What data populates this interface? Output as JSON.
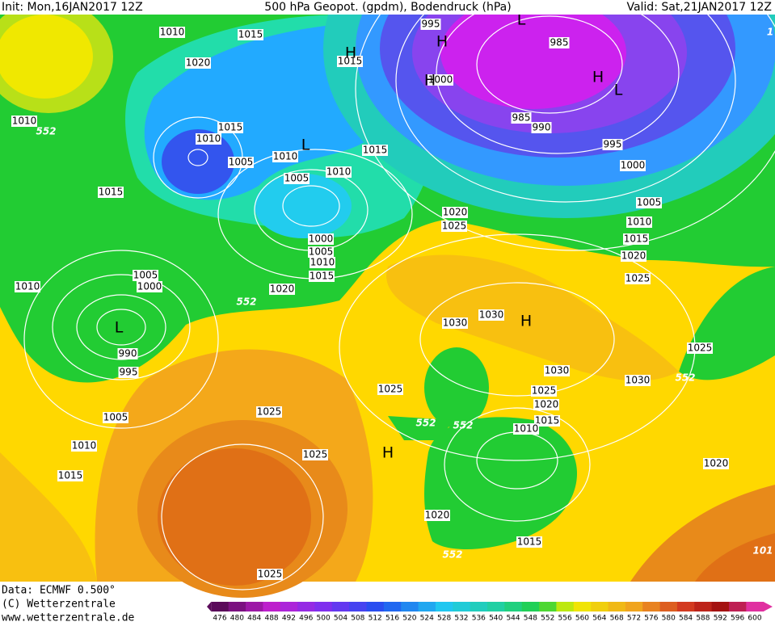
{
  "header": {
    "init": "Init: Mon,16JAN2017 12Z",
    "title": "500 hPa Geopot. (gpdm), Bodendruck (hPa)",
    "valid": "Valid: Sat,21JAN2017 12Z"
  },
  "footer": {
    "data": "Data: ECMWF  0.500°",
    "copyright": "(C) Wetterzentrale",
    "url": "www.wetterzentrale.de"
  },
  "map": {
    "isobars": [
      1010,
      1015,
      1020,
      1010,
      552,
      1015,
      1010,
      1005,
      1010,
      1005,
      1010,
      1015,
      1015,
      1015,
      995,
      1000,
      985,
      985,
      990,
      995,
      1000,
      1005,
      1010,
      1015,
      1020,
      1025,
      1020,
      1025,
      1000,
      1005,
      1010,
      1015,
      1020,
      552,
      1005,
      1000,
      1010,
      990,
      995,
      1030,
      1030,
      1025,
      1030,
      1030,
      1025,
      1020,
      1015,
      1010,
      552,
      552,
      1025,
      552,
      1005,
      1010,
      1015,
      1025,
      1025,
      1020,
      1020,
      1015,
      552,
      1025,
      101,
      1
    ],
    "centers": [
      "H",
      "L",
      "H",
      "L",
      "L",
      "L",
      "H",
      "H",
      "H",
      "H"
    ]
  },
  "colorbar": {
    "labels": [
      476,
      480,
      484,
      488,
      492,
      496,
      500,
      504,
      508,
      512,
      516,
      520,
      524,
      528,
      532,
      536,
      540,
      544,
      548,
      552,
      556,
      560,
      564,
      568,
      572,
      576,
      580,
      584,
      588,
      592,
      596,
      600
    ]
  }
}
